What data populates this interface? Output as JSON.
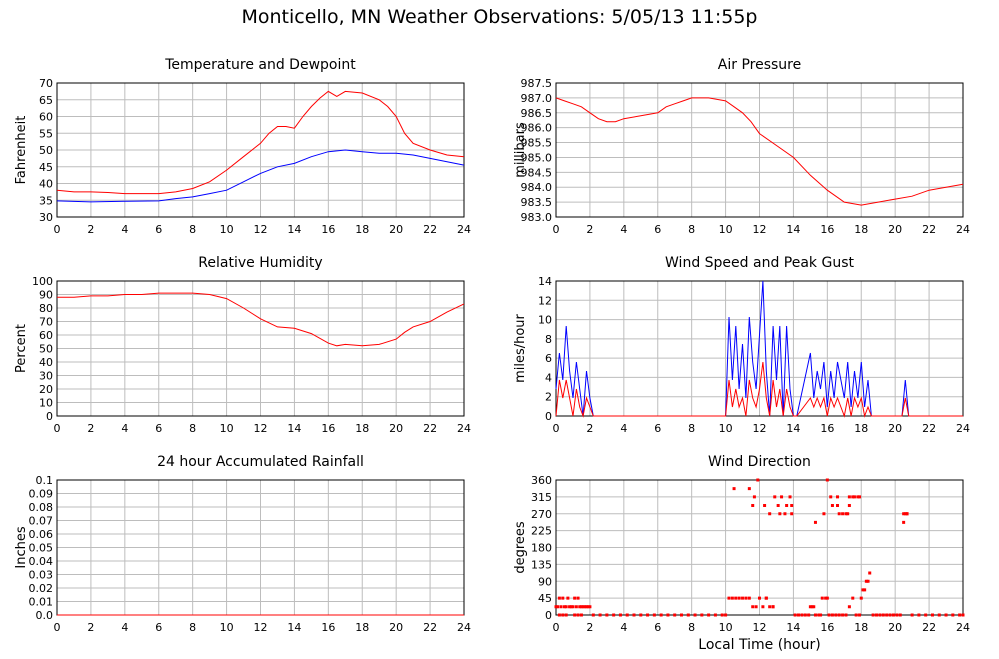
{
  "page_title": "Monticello, MN Weather Observations: 5/05/13 11:55p",
  "colors": {
    "red": "#ff0000",
    "blue": "#0000ff",
    "grid": "#bdbdbd",
    "axis": "#000000"
  },
  "chart_data": [
    {
      "id": "temp",
      "type": "line",
      "title": "Temperature and Dewpoint",
      "xlabel": "",
      "ylabel": "Fahrenheit",
      "x_ticks": [
        0,
        2,
        4,
        6,
        8,
        10,
        12,
        14,
        16,
        18,
        20,
        22,
        24
      ],
      "y_ticks": [
        "30",
        "35",
        "40",
        "45",
        "50",
        "55",
        "60",
        "65",
        "70"
      ],
      "ylim": [
        30,
        70
      ],
      "grid": true,
      "series": [
        {
          "color": "#ff0000",
          "x": [
            0,
            1,
            2,
            3,
            4,
            5,
            6,
            7,
            8,
            9,
            10,
            11,
            12,
            12.5,
            13,
            13.5,
            14,
            14.5,
            15,
            15.5,
            16,
            16.5,
            17,
            18,
            19,
            19.5,
            20,
            20.5,
            21,
            22,
            23,
            24
          ],
          "y": [
            38,
            37.5,
            37.5,
            37.3,
            37,
            37,
            37,
            37.5,
            38.5,
            40.5,
            44,
            48,
            52,
            55,
            57,
            57,
            56.5,
            60,
            63,
            65.5,
            67.5,
            66,
            67.5,
            67,
            65,
            63,
            60,
            55,
            52,
            50,
            48.5,
            48
          ]
        },
        {
          "color": "#0000ff",
          "x": [
            0,
            2,
            4,
            6,
            7,
            8,
            9,
            10,
            11,
            12,
            13,
            14,
            15,
            16,
            17,
            18,
            19,
            20,
            21,
            22,
            23,
            24
          ],
          "y": [
            34.8,
            34.5,
            34.7,
            34.8,
            35.5,
            36,
            37,
            38,
            40.5,
            43,
            45,
            46,
            48,
            49.5,
            50,
            49.5,
            49,
            49,
            48.5,
            47.5,
            46.5,
            45.5
          ]
        }
      ]
    },
    {
      "id": "pressure",
      "type": "line",
      "title": "Air Pressure",
      "xlabel": "",
      "ylabel": "millibars",
      "x_ticks": [
        0,
        2,
        4,
        6,
        8,
        10,
        12,
        14,
        16,
        18,
        20,
        22,
        24
      ],
      "y_ticks": [
        "983.0",
        "983.5",
        "984.0",
        "984.5",
        "985.0",
        "985.5",
        "986.0",
        "986.5",
        "987.0",
        "987.5"
      ],
      "ylim": [
        983.0,
        987.5
      ],
      "grid": true,
      "series": [
        {
          "color": "#ff0000",
          "x": [
            0,
            0.5,
            1,
            1.5,
            2,
            2.5,
            3,
            3.5,
            4,
            5,
            6,
            6.5,
            7,
            7.5,
            8,
            9,
            10,
            10.5,
            11,
            11.5,
            12,
            13,
            14,
            15,
            16,
            17,
            18,
            19,
            20,
            21,
            22,
            23,
            24
          ],
          "y": [
            987,
            986.9,
            986.8,
            986.7,
            986.5,
            986.3,
            986.2,
            986.2,
            986.3,
            986.4,
            986.5,
            986.7,
            986.8,
            986.9,
            987,
            987,
            986.9,
            986.7,
            986.5,
            986.2,
            985.8,
            985.4,
            985,
            984.4,
            983.9,
            983.5,
            983.4,
            983.5,
            983.6,
            983.7,
            983.9,
            984,
            984.1
          ]
        }
      ]
    },
    {
      "id": "humidity",
      "type": "line",
      "title": "Relative Humidity",
      "xlabel": "",
      "ylabel": "Percent",
      "x_ticks": [
        0,
        2,
        4,
        6,
        8,
        10,
        12,
        14,
        16,
        18,
        20,
        22,
        24
      ],
      "y_ticks": [
        "0",
        "10",
        "20",
        "30",
        "40",
        "50",
        "60",
        "70",
        "80",
        "90",
        "100"
      ],
      "ylim": [
        0,
        100
      ],
      "grid": true,
      "series": [
        {
          "color": "#ff0000",
          "x": [
            0,
            1,
            2,
            3,
            4,
            5,
            6,
            7,
            8,
            9,
            10,
            11,
            12,
            13,
            14,
            15,
            16,
            16.5,
            17,
            18,
            19,
            20,
            20.5,
            21,
            22,
            23,
            24
          ],
          "y": [
            88,
            88,
            89,
            89,
            90,
            90,
            91,
            91,
            91,
            90,
            87,
            80,
            72,
            66,
            65,
            61,
            54,
            52,
            53,
            52,
            53,
            57,
            62,
            66,
            70,
            77,
            83
          ]
        }
      ]
    },
    {
      "id": "wind",
      "type": "line",
      "title": "Wind Speed and Peak Gust",
      "xlabel": "",
      "ylabel": "miles/hour",
      "x_ticks": [
        0,
        2,
        4,
        6,
        8,
        10,
        12,
        14,
        16,
        18,
        20,
        22,
        24
      ],
      "y_ticks": [
        "0",
        "2",
        "4",
        "6",
        "8",
        "10",
        "12",
        "14"
      ],
      "ylim": [
        0,
        15
      ],
      "grid": true,
      "series": [
        {
          "color": "#0000ff",
          "x": [
            0,
            0.2,
            0.4,
            0.6,
            0.8,
            1.0,
            1.2,
            1.4,
            1.6,
            1.8,
            2.0,
            2.2,
            10,
            10.2,
            10.4,
            10.6,
            10.8,
            11,
            11.2,
            11.4,
            11.6,
            11.8,
            12,
            12.2,
            12.4,
            12.6,
            12.8,
            13,
            13.2,
            13.4,
            13.6,
            13.8,
            14,
            14.2,
            15,
            15.2,
            15.4,
            15.6,
            15.8,
            16,
            16.2,
            16.4,
            16.6,
            16.8,
            17,
            17.2,
            17.4,
            17.6,
            17.8,
            18,
            18.2,
            18.4,
            18.6,
            18.8,
            20.4,
            20.6,
            20.8,
            24
          ],
          "y": [
            3,
            7,
            4,
            10,
            5,
            2,
            6,
            3,
            0,
            5,
            2,
            0,
            0,
            11,
            4,
            10,
            3,
            8,
            2,
            11,
            6,
            3,
            9,
            15,
            5,
            0,
            10,
            4,
            10,
            0,
            10,
            3,
            0,
            0,
            7,
            2,
            5,
            3,
            6,
            1,
            5,
            2,
            6,
            4,
            2,
            6,
            1,
            5,
            2,
            6,
            1,
            4,
            0,
            0,
            0,
            4,
            0,
            0
          ]
        },
        {
          "color": "#ff0000",
          "x": [
            0,
            0.2,
            0.4,
            0.6,
            0.8,
            1.0,
            1.2,
            1.4,
            1.6,
            1.8,
            2.0,
            2.2,
            10,
            10.2,
            10.4,
            10.6,
            10.8,
            11,
            11.2,
            11.4,
            11.6,
            11.8,
            12,
            12.2,
            12.4,
            12.6,
            12.8,
            13,
            13.2,
            13.4,
            13.6,
            13.8,
            14,
            14.2,
            15,
            15.2,
            15.4,
            15.6,
            15.8,
            16,
            16.2,
            16.4,
            16.6,
            16.8,
            17,
            17.2,
            17.4,
            17.6,
            17.8,
            18,
            18.2,
            18.4,
            18.6,
            18.8,
            20.4,
            20.6,
            20.8,
            24
          ],
          "y": [
            0,
            4,
            2,
            4,
            2,
            0,
            3,
            1,
            0,
            2,
            1,
            0,
            0,
            4,
            1,
            3,
            1,
            2,
            0,
            4,
            2,
            1,
            3,
            6,
            2,
            0,
            4,
            1,
            3,
            0,
            3,
            1,
            0,
            0,
            2,
            1,
            2,
            1,
            2,
            0,
            2,
            1,
            2,
            1,
            0,
            2,
            0,
            2,
            1,
            2,
            0,
            1,
            0,
            0,
            0,
            2,
            0,
            0
          ]
        }
      ]
    },
    {
      "id": "rain",
      "type": "line",
      "title": "24 hour Accumulated Rainfall",
      "xlabel": "",
      "ylabel": "Inches",
      "x_ticks": [
        0,
        2,
        4,
        6,
        8,
        10,
        12,
        14,
        16,
        18,
        20,
        22,
        24
      ],
      "y_ticks": [
        "0.0",
        "0.01",
        "0.02",
        "0.03",
        "0.04",
        "0.05",
        "0.06",
        "0.07",
        "0.08",
        "0.09",
        "0.1"
      ],
      "ylim": [
        0,
        0.1
      ],
      "grid": true,
      "series": [
        {
          "color": "#ff0000",
          "x": [
            0,
            24
          ],
          "y": [
            0,
            0
          ]
        }
      ]
    },
    {
      "id": "direction",
      "type": "scatter",
      "title": "Wind Direction",
      "xlabel": "Local Time (hour)",
      "ylabel": "degrees",
      "x_ticks": [
        0,
        2,
        4,
        6,
        8,
        10,
        12,
        14,
        16,
        18,
        20,
        22,
        24
      ],
      "y_ticks": [
        "0",
        "45",
        "90",
        "135",
        "180",
        "225",
        "270",
        "315",
        "360"
      ],
      "ylim": [
        0,
        360
      ],
      "grid": true,
      "series": [
        {
          "color": "#ff0000",
          "x": [
            0,
            0.1,
            0.2,
            0.3,
            0.4,
            0.5,
            0.6,
            0.7,
            0.8,
            0.9,
            1.0,
            1.1,
            1.2,
            1.3,
            1.4,
            1.5,
            1.6,
            1.7,
            1.8,
            1.9,
            2.0,
            0.2,
            0.4,
            0.6,
            1.1,
            1.3,
            1.5,
            2.2,
            2.6,
            3.0,
            3.4,
            3.8,
            4.2,
            4.6,
            5.0,
            5.4,
            5.8,
            6.2,
            6.6,
            7.0,
            7.4,
            7.8,
            8.2,
            8.6,
            9.0,
            9.4,
            9.8,
            10.0,
            10.2,
            10.4,
            10.6,
            10.8,
            11.0,
            11.2,
            11.4,
            11.6,
            11.8,
            12.0,
            12.2,
            12.4,
            12.6,
            12.8,
            10.5,
            11.4,
            11.7,
            11.6,
            11.9,
            12.3,
            12.6,
            12.9,
            13.1,
            13.3,
            13.5,
            13.6,
            13.8,
            13.2,
            12.4,
            12.8,
            13.9,
            13.9,
            14.1,
            14.3,
            14.5,
            14.7,
            14.9,
            15.0,
            15.1,
            15.2,
            15.3,
            15.5,
            15.6,
            15.7,
            15.9,
            16.0,
            16.1,
            16.3,
            16.5,
            16.7,
            16.9,
            17.1,
            17.3,
            17.5,
            17.7,
            17.9,
            16.2,
            16.6,
            16.9,
            17.1,
            17.3,
            17.6,
            17.9,
            15.3,
            15.8,
            16.3,
            16.7,
            17.2,
            18.0,
            18.1,
            18.2,
            18.3,
            18.4,
            18.5,
            18.7,
            18.9,
            19.1,
            19.3,
            19.5,
            19.7,
            19.9,
            20.1,
            20.3,
            20.5,
            20.7,
            21.0,
            21.4,
            21.8,
            22.2,
            22.6,
            23.0,
            23.4,
            23.8,
            24.0,
            20.5,
            20.6,
            20.7,
            16.0,
            16.6,
            17.3,
            17.5,
            17.8
          ],
          "y": [
            22,
            22,
            45,
            22,
            45,
            22,
            22,
            45,
            22,
            22,
            22,
            45,
            22,
            45,
            22,
            22,
            22,
            22,
            22,
            22,
            22,
            0,
            0,
            0,
            0,
            0,
            0,
            0,
            0,
            0,
            0,
            0,
            0,
            0,
            0,
            0,
            0,
            0,
            0,
            0,
            0,
            0,
            0,
            0,
            0,
            0,
            0,
            0,
            45,
            45,
            45,
            45,
            45,
            45,
            45,
            22,
            22,
            45,
            22,
            45,
            22,
            22,
            337,
            337,
            315,
            292,
            360,
            292,
            270,
            315,
            292,
            315,
            270,
            292,
            315,
            270,
            45,
            22,
            270,
            292,
            0,
            0,
            0,
            0,
            0,
            22,
            22,
            22,
            0,
            0,
            0,
            45,
            45,
            45,
            0,
            0,
            0,
            0,
            0,
            0,
            22,
            45,
            0,
            0,
            315,
            292,
            270,
            270,
            292,
            315,
            315,
            247,
            270,
            292,
            270,
            270,
            45,
            67,
            67,
            90,
            90,
            112,
            0,
            0,
            0,
            0,
            0,
            0,
            0,
            0,
            0,
            247,
            270,
            0,
            0,
            0,
            0,
            0,
            0,
            0,
            0,
            0,
            270,
            270,
            270,
            360,
            315,
            315,
            315,
            315
          ]
        }
      ]
    }
  ]
}
